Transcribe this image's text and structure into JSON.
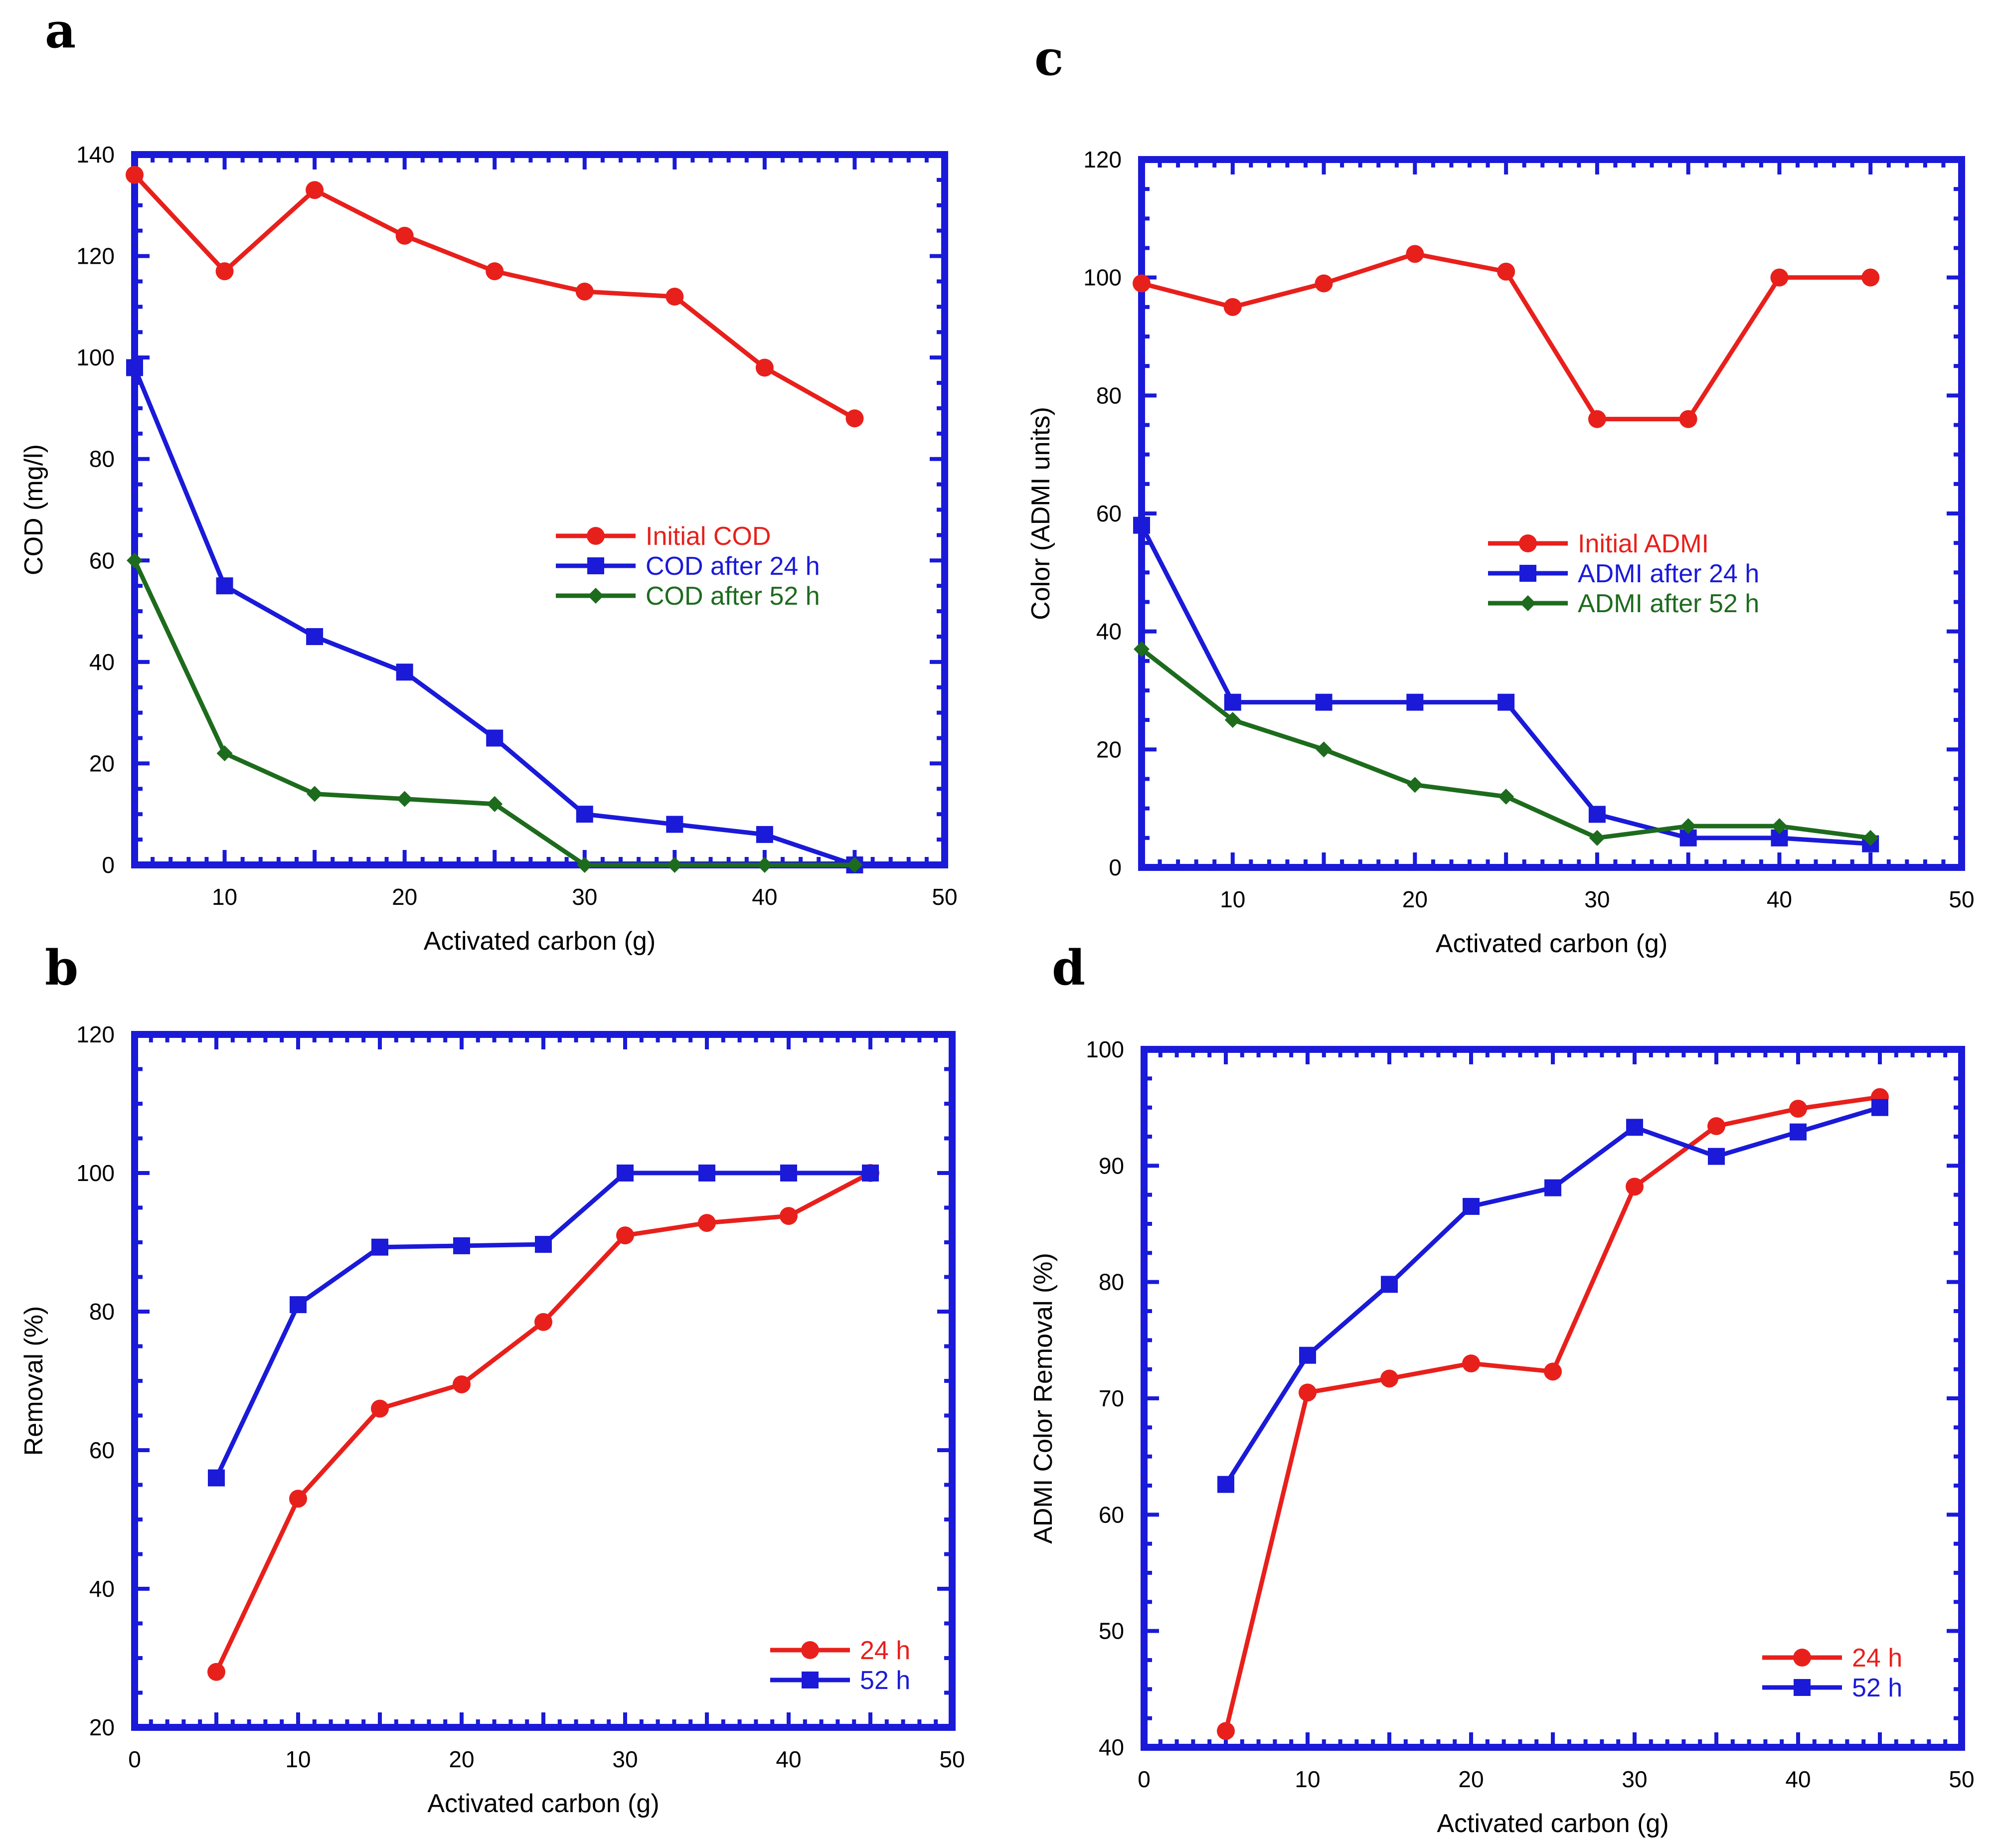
{
  "chart_data": [
    {
      "panel": "a",
      "type": "line",
      "xlabel": "Activated carbon (g)",
      "ylabel": "COD (mg/l)",
      "xlim": [
        5,
        50
      ],
      "ylim": [
        0,
        140
      ],
      "xticks": [
        10,
        20,
        30,
        40,
        50
      ],
      "yticks": [
        0,
        20,
        40,
        60,
        80,
        100,
        120,
        140
      ],
      "legend_position": "center-right",
      "series": [
        {
          "name": "Initial COD",
          "color": "#e8201c",
          "marker": "circle",
          "x": [
            5,
            10,
            15,
            20,
            25,
            30,
            35,
            40,
            45
          ],
          "values": [
            136,
            117,
            133,
            124,
            117,
            113,
            112,
            98,
            88
          ]
        },
        {
          "name": "COD after 24 h",
          "color": "#1a1ad8",
          "marker": "square",
          "x": [
            5,
            10,
            15,
            20,
            25,
            30,
            35,
            40,
            45
          ],
          "values": [
            98,
            55,
            45,
            38,
            25,
            10,
            8,
            6,
            0
          ]
        },
        {
          "name": "COD after 52 h",
          "color": "#1d6b1d",
          "marker": "diamond",
          "x": [
            5,
            10,
            15,
            20,
            25,
            30,
            35,
            40,
            45
          ],
          "values": [
            60,
            22,
            14,
            13,
            12,
            0,
            0,
            0,
            0
          ]
        }
      ]
    },
    {
      "panel": "b",
      "type": "line",
      "xlabel": "Activated carbon (g)",
      "ylabel": "Removal (%)",
      "xlim": [
        0,
        50
      ],
      "ylim": [
        20,
        120
      ],
      "xticks": [
        0,
        10,
        20,
        30,
        40,
        50
      ],
      "yticks": [
        20,
        40,
        60,
        80,
        100,
        120
      ],
      "legend_position": "bottom-right",
      "series": [
        {
          "name": "24 h",
          "color": "#e8201c",
          "marker": "circle",
          "x": [
            5,
            10,
            15,
            20,
            25,
            30,
            35,
            40,
            45
          ],
          "values": [
            28,
            53,
            66,
            69.5,
            78.5,
            91,
            92.8,
            93.8,
            100
          ]
        },
        {
          "name": "52 h",
          "color": "#1a1ad8",
          "marker": "square",
          "x": [
            5,
            10,
            15,
            20,
            25,
            30,
            35,
            40,
            45
          ],
          "values": [
            56,
            81,
            89.3,
            89.5,
            89.7,
            100,
            100,
            100,
            100
          ]
        }
      ]
    },
    {
      "panel": "c",
      "type": "line",
      "xlabel": "Activated carbon (g)",
      "ylabel": "Color (ADMI units)",
      "xlim": [
        5,
        50
      ],
      "ylim": [
        0,
        120
      ],
      "xticks": [
        10,
        20,
        30,
        40,
        50
      ],
      "yticks": [
        0,
        20,
        40,
        60,
        80,
        100,
        120
      ],
      "legend_position": "center-right",
      "series": [
        {
          "name": "Initial ADMI",
          "color": "#e8201c",
          "marker": "circle",
          "x": [
            5,
            10,
            15,
            20,
            25,
            30,
            35,
            40,
            45
          ],
          "values": [
            99,
            95,
            99,
            104,
            101,
            76,
            76,
            100,
            100
          ]
        },
        {
          "name": "ADMI after 24 h",
          "color": "#1a1ad8",
          "marker": "square",
          "x": [
            5,
            10,
            15,
            20,
            25,
            30,
            35,
            40,
            45
          ],
          "values": [
            58,
            28,
            28,
            28,
            28,
            9,
            5,
            5,
            4
          ]
        },
        {
          "name": "ADMI after 52 h",
          "color": "#1d6b1d",
          "marker": "diamond",
          "x": [
            5,
            10,
            15,
            20,
            25,
            30,
            35,
            40,
            45
          ],
          "values": [
            37,
            25,
            20,
            14,
            12,
            5,
            7,
            7,
            5
          ]
        }
      ]
    },
    {
      "panel": "d",
      "type": "line",
      "xlabel": "Activated carbon (g)",
      "ylabel": "ADMI Color Removal (%)",
      "xlim": [
        0,
        50
      ],
      "ylim": [
        40,
        100
      ],
      "xticks": [
        0,
        10,
        20,
        30,
        40,
        50
      ],
      "yticks": [
        40,
        50,
        60,
        70,
        80,
        90,
        100
      ],
      "legend_position": "bottom-right",
      "series": [
        {
          "name": "24 h",
          "color": "#e8201c",
          "marker": "circle",
          "x": [
            5,
            10,
            15,
            20,
            25,
            30,
            35,
            40,
            45
          ],
          "values": [
            41.4,
            70.5,
            71.7,
            73,
            72.3,
            88.2,
            93.4,
            94.9,
            95.9
          ]
        },
        {
          "name": "52 h",
          "color": "#1a1ad8",
          "marker": "square",
          "x": [
            5,
            10,
            15,
            20,
            25,
            30,
            35,
            40,
            45
          ],
          "values": [
            62.6,
            73.7,
            79.8,
            86.5,
            88.1,
            93.3,
            90.8,
            92.9,
            95
          ]
        }
      ]
    }
  ]
}
